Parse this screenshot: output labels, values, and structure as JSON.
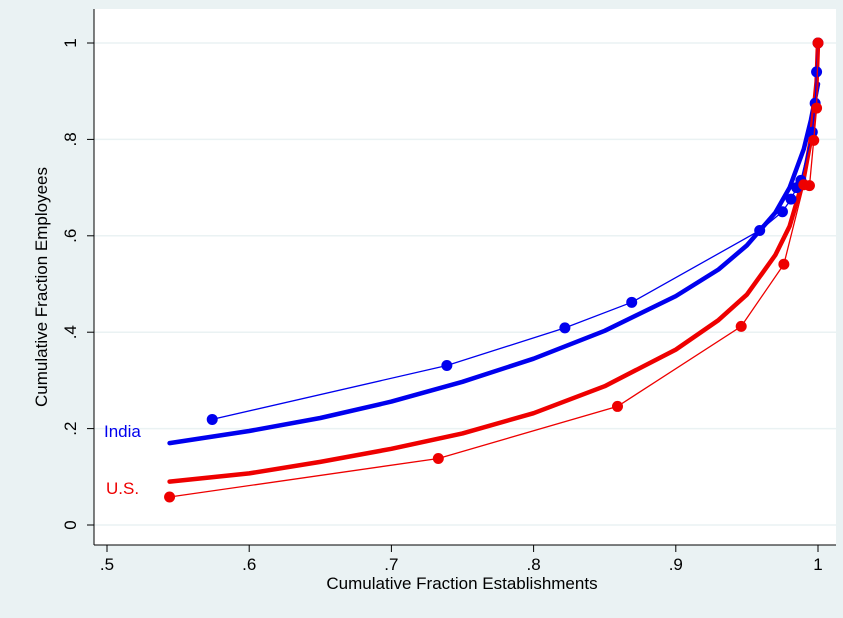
{
  "chart_data": {
    "type": "line",
    "title": "",
    "xlabel": "Cumulative Fraction Establishments",
    "ylabel": "Cumulative Fraction Employees",
    "xlim": [
      0.5,
      1.0
    ],
    "ylim": [
      0,
      1.0
    ],
    "x_ticks": [
      0.5,
      0.6,
      0.7,
      0.8,
      0.9,
      1.0
    ],
    "x_tick_labels": [
      ".5",
      ".6",
      ".7",
      ".8",
      ".9",
      "1"
    ],
    "y_ticks": [
      0,
      0.2,
      0.4,
      0.6,
      0.8,
      1.0
    ],
    "y_tick_labels": [
      "0",
      ".2",
      ".4",
      ".6",
      ".8",
      "1"
    ],
    "grid": "horizontal",
    "legend": "none",
    "colors": {
      "outer_background": "#eaf2f3",
      "plot_background": "#ffffff",
      "grid": "#eaf2f3",
      "axis": "#000000"
    },
    "series": [
      {
        "name": "India",
        "color": "#0000ee",
        "points": [
          [
            0.574,
            0.219
          ],
          [
            0.739,
            0.331
          ],
          [
            0.822,
            0.409
          ],
          [
            0.869,
            0.462
          ],
          [
            0.959,
            0.611
          ],
          [
            0.975,
            0.65
          ],
          [
            0.981,
            0.676
          ],
          [
            0.985,
            0.7
          ],
          [
            0.988,
            0.715
          ],
          [
            0.996,
            0.815
          ],
          [
            0.998,
            0.875
          ],
          [
            0.999,
            0.94
          ],
          [
            1.0,
            1.0
          ]
        ],
        "fit": [
          [
            0.544,
            0.17
          ],
          [
            0.6,
            0.195
          ],
          [
            0.65,
            0.222
          ],
          [
            0.7,
            0.256
          ],
          [
            0.75,
            0.297
          ],
          [
            0.8,
            0.345
          ],
          [
            0.85,
            0.403
          ],
          [
            0.9,
            0.475
          ],
          [
            0.93,
            0.53
          ],
          [
            0.95,
            0.58
          ],
          [
            0.97,
            0.648
          ],
          [
            0.98,
            0.7
          ],
          [
            0.99,
            0.78
          ],
          [
            0.995,
            0.84
          ],
          [
            1.0,
            0.915
          ]
        ]
      },
      {
        "name": "U.S.",
        "color": "#ee0000",
        "points": [
          [
            0.544,
            0.058
          ],
          [
            0.733,
            0.138
          ],
          [
            0.859,
            0.246
          ],
          [
            0.946,
            0.412
          ],
          [
            0.976,
            0.541
          ],
          [
            0.99,
            0.706
          ],
          [
            0.994,
            0.704
          ],
          [
            0.997,
            0.798
          ],
          [
            0.999,
            0.865
          ],
          [
            1.0,
            1.0
          ]
        ],
        "fit": [
          [
            0.544,
            0.09
          ],
          [
            0.6,
            0.107
          ],
          [
            0.65,
            0.131
          ],
          [
            0.7,
            0.158
          ],
          [
            0.75,
            0.19
          ],
          [
            0.8,
            0.232
          ],
          [
            0.85,
            0.288
          ],
          [
            0.9,
            0.364
          ],
          [
            0.93,
            0.425
          ],
          [
            0.95,
            0.478
          ],
          [
            0.97,
            0.56
          ],
          [
            0.98,
            0.62
          ],
          [
            0.99,
            0.72
          ],
          [
            0.995,
            0.8
          ],
          [
            0.999,
            0.92
          ],
          [
            1.0,
            1.0
          ]
        ]
      }
    ]
  }
}
